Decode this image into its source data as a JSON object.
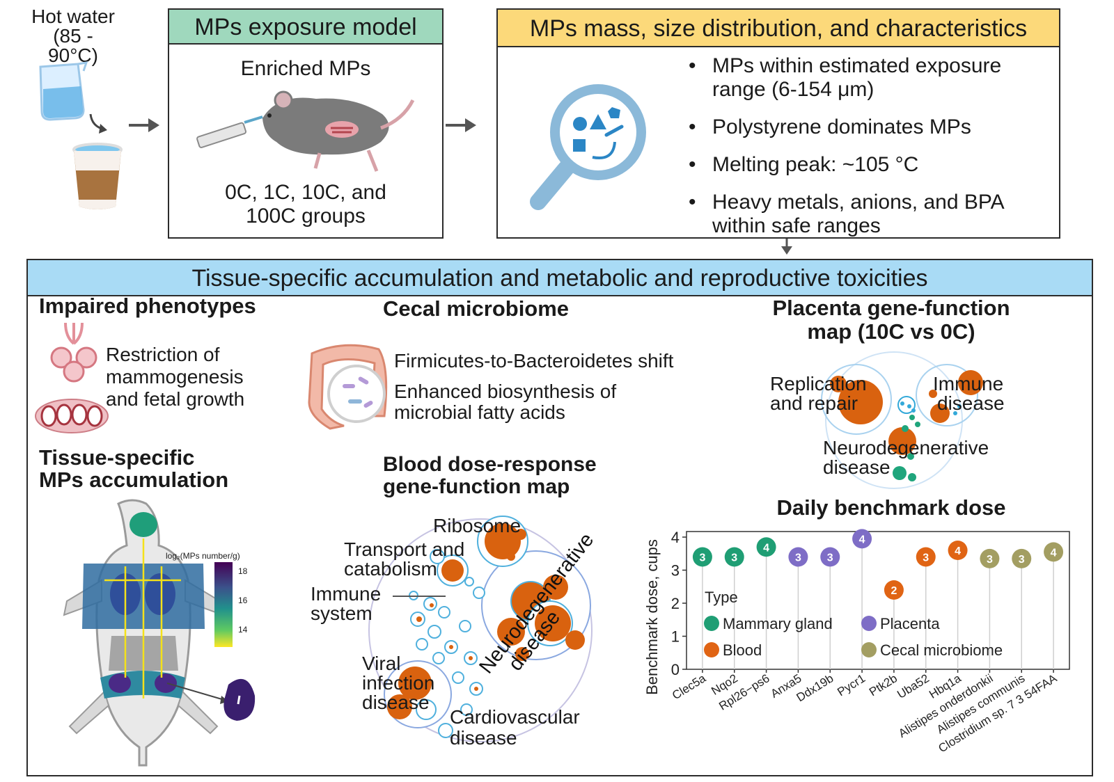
{
  "colors": {
    "green_header": "#9fd8bd",
    "yellow_header": "#fcd97a",
    "blue_header": "#a9dbf5",
    "orange_bubble": "#d9620f",
    "teal_bubble": "#1fa57c",
    "cyan_bubble": "#33a9d9",
    "mammary": "#1f9e74",
    "placenta": "#7e6dc6",
    "blood": "#e06414",
    "cecal": "#a39e62"
  },
  "icons": [
    "beaker-icon",
    "coffee-cup-icon",
    "mouse-injection-icon",
    "magnifier-particles-icon",
    "mammary-gland-icon",
    "fetus-tissue-icon",
    "intestine-icon",
    "mouse-anatomy-icon",
    "organ-icon"
  ],
  "hot_water": {
    "line1": "Hot water",
    "line2": "(85 - 90°C)"
  },
  "exposure": {
    "title": "MPs  exposure model",
    "subtitle": "Enriched MPs",
    "groups_line1": "0C, 1C, 10C, and",
    "groups_line2": "100C groups"
  },
  "mass": {
    "title": "MPs mass, size distribution, and characteristics",
    "bullets": [
      {
        "l1": "MPs within estimated exposure",
        "l2": "range (6-154 μm)"
      },
      {
        "l1": "Polystyrene dominates MPs",
        "l2": ""
      },
      {
        "l1": "Melting peak: ~105 °C",
        "l2": ""
      },
      {
        "l1": "Heavy metals, anions, and BPA",
        "l2": "within safe ranges"
      }
    ]
  },
  "toxicity": {
    "title": "Tissue-specific accumulation and metabolic and reproductive toxicities"
  },
  "phenotypes": {
    "title": "Impaired phenotypes",
    "l1": "Restriction of",
    "l2": "mammogenesis",
    "l3": "and fetal growth"
  },
  "accumulation": {
    "title_l1": "Tissue-specific",
    "title_l2": "MPs accumulation",
    "legend_title": "log₂(MPs number/g)",
    "ticks": [
      "18",
      "16",
      "14"
    ]
  },
  "cecal": {
    "title": "Cecal microbiome",
    "l1": "Firmicutes-to-Bacteroidetes shift",
    "l2": "Enhanced biosynthesis of",
    "l3": "microbial fatty acids"
  },
  "blood_map": {
    "title_l1": "Blood dose-response",
    "title_l2": "gene-function map",
    "ribosome": "Ribosome",
    "transport_l1": "Transport and",
    "transport_l2": "catabolism",
    "immune_l1": "Immune",
    "immune_l2": "system",
    "neuro_l1": "Neurodegenerative",
    "neuro_l2": "disease",
    "viral_l1": "Viral",
    "viral_l2": "infection",
    "viral_l3": "disease",
    "cardio_l1": "Cardiovascular",
    "cardio_l2": "disease"
  },
  "placenta_map": {
    "title_l1": "Placenta gene-function",
    "title_l2": "map (10C vs 0C)",
    "rep_l1": "Replication",
    "rep_l2": "and repair",
    "imm_l1": "Immune",
    "imm_l2": "disease",
    "neuro_l1": "Neurodegenerative",
    "neuro_l2": "disease"
  },
  "bmd_title": "Daily benchmark dose",
  "chart_data": {
    "type": "scatter",
    "title": "Daily benchmark dose",
    "ylabel": "Benchmark dose, cups",
    "xlabel": "",
    "ylim": [
      0,
      4
    ],
    "yticks": [
      0,
      1,
      2,
      3,
      4
    ],
    "grid": false,
    "legend_title": "Type",
    "legend": [
      "Mammary gland",
      "Placenta",
      "Blood",
      "Cecal microbiome"
    ],
    "categories": [
      "Clec5a",
      "Nqo2",
      "Rpl26−ps6",
      "Anxa5",
      "Ddx19b",
      "Pycr1",
      "Ptk2b",
      "Uba52",
      "Hbq1a",
      "Alistipes onderdonkii",
      "Alistipes communis",
      "Clostridium sp. 7 3 54FAA"
    ],
    "values": [
      3.4,
      3.4,
      3.7,
      3.4,
      3.4,
      3.95,
      2.4,
      3.4,
      3.6,
      3.35,
      3.35,
      3.55
    ],
    "point_labels": [
      "3",
      "3",
      "4",
      "3",
      "3",
      "4",
      "2",
      "3",
      "4",
      "3",
      "3",
      "4"
    ],
    "types": [
      "Mammary gland",
      "Mammary gland",
      "Mammary gland",
      "Placenta",
      "Placenta",
      "Placenta",
      "Blood",
      "Blood",
      "Blood",
      "Cecal microbiome",
      "Cecal microbiome",
      "Cecal microbiome"
    ]
  }
}
